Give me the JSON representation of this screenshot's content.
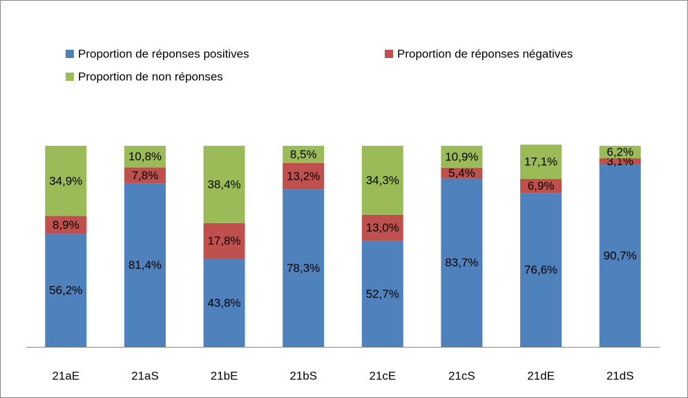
{
  "chart_data": {
    "type": "bar",
    "stacked": true,
    "categories": [
      "21aE",
      "21aS",
      "21bE",
      "21bS",
      "21cE",
      "21cS",
      "21dE",
      "21dS"
    ],
    "series": [
      {
        "name": "Proportion de réponses positives",
        "color": "#4f81bd",
        "values": [
          56.2,
          81.4,
          43.8,
          78.3,
          52.7,
          83.7,
          76.6,
          90.7
        ],
        "value_labels": [
          "56,2%",
          "81,4%",
          "43,8%",
          "78,3%",
          "52,7%",
          "83,7%",
          "76,6%",
          "90,7%"
        ]
      },
      {
        "name": "Proportion de réponses négatives",
        "color": "#c0504d",
        "values": [
          8.9,
          7.8,
          17.8,
          13.2,
          13.0,
          5.4,
          6.9,
          3.1
        ],
        "value_labels": [
          "8,9%",
          "7,8%",
          "17,8%",
          "13,2%",
          "13,0%",
          "5,4%",
          "6,9%",
          "3,1%"
        ]
      },
      {
        "name": "Proportion de non réponses",
        "color": "#9bbb59",
        "values": [
          34.9,
          10.8,
          38.4,
          8.5,
          34.3,
          10.9,
          17.1,
          6.2
        ],
        "value_labels": [
          "34,9%",
          "10,8%",
          "38,4%",
          "8,5%",
          "34,3%",
          "10,9%",
          "17,1%",
          "6,2%"
        ]
      }
    ],
    "ylim": [
      0,
      100
    ],
    "legend": "top"
  }
}
